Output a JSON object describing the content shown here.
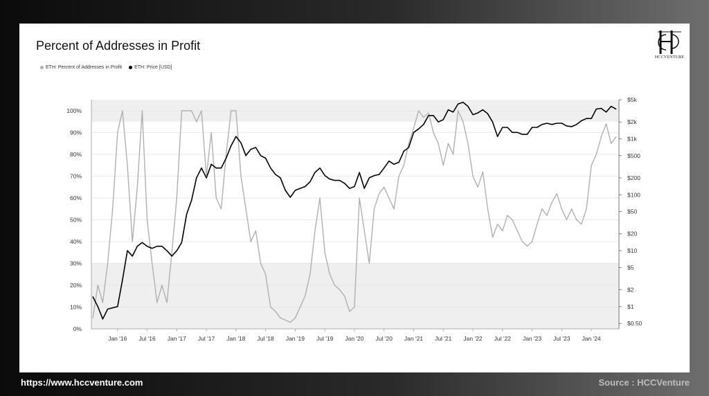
{
  "footer": {
    "url": "https://www.hccventure.com",
    "source": "Source : HCCVenture"
  },
  "logo": {
    "text": "HCCVENTURE"
  },
  "colors": {
    "percent_series": "#b0b0b0",
    "price_series": "#000000",
    "band": "#efefef"
  },
  "chart_data": {
    "type": "line",
    "title": "Percent of Addresses in Profit",
    "legend": [
      "ETH: Percent of Addresses in Profit",
      "ETH: Price [USD]"
    ],
    "legend_position": "top-left",
    "grid": true,
    "x_ticks": [
      "Jan '16",
      "Jul '16",
      "Jan '17",
      "Jul '17",
      "Jan '18",
      "Jul '18",
      "Jan '19",
      "Jul '19",
      "Jan '20",
      "Jul '20",
      "Jan '21",
      "Jul '21",
      "Jan '22",
      "Jul '22",
      "Jan '23",
      "Jul '23",
      "Jan '24"
    ],
    "y_left_ticks": [
      "0%",
      "10%",
      "20%",
      "30%",
      "40%",
      "50%",
      "60%",
      "70%",
      "80%",
      "90%",
      "100%"
    ],
    "y_left_range": [
      0,
      100
    ],
    "y_right_ticks": [
      "$0.50",
      "$1",
      "$2",
      "$5",
      "$10",
      "$20",
      "$50",
      "$100",
      "$200",
      "$500",
      "$1k",
      "$2k",
      "$5k"
    ],
    "y_right_scale": "log",
    "y_right_range": [
      0.4,
      5000
    ],
    "bands_percent": [
      [
        0,
        30
      ],
      [
        95,
        105
      ]
    ],
    "series": [
      {
        "name": "ETH: Percent of Addresses in Profit",
        "axis": "left",
        "x": [
          "2015-08",
          "2015-09",
          "2015-10",
          "2015-11",
          "2015-12",
          "2016-01",
          "2016-02",
          "2016-03",
          "2016-04",
          "2016-05",
          "2016-06",
          "2016-07",
          "2016-08",
          "2016-09",
          "2016-10",
          "2016-11",
          "2016-12",
          "2017-01",
          "2017-02",
          "2017-03",
          "2017-04",
          "2017-05",
          "2017-06",
          "2017-07",
          "2017-08",
          "2017-09",
          "2017-10",
          "2017-11",
          "2017-12",
          "2018-01",
          "2018-02",
          "2018-03",
          "2018-04",
          "2018-05",
          "2018-06",
          "2018-07",
          "2018-08",
          "2018-09",
          "2018-10",
          "2018-11",
          "2018-12",
          "2019-01",
          "2019-02",
          "2019-03",
          "2019-04",
          "2019-05",
          "2019-06",
          "2019-07",
          "2019-08",
          "2019-09",
          "2019-10",
          "2019-11",
          "2019-12",
          "2020-01",
          "2020-02",
          "2020-03",
          "2020-04",
          "2020-05",
          "2020-06",
          "2020-07",
          "2020-08",
          "2020-09",
          "2020-10",
          "2020-11",
          "2020-12",
          "2021-01",
          "2021-02",
          "2021-03",
          "2021-04",
          "2021-05",
          "2021-06",
          "2021-07",
          "2021-08",
          "2021-09",
          "2021-10",
          "2021-11",
          "2021-12",
          "2022-01",
          "2022-02",
          "2022-03",
          "2022-04",
          "2022-05",
          "2022-06",
          "2022-07",
          "2022-08",
          "2022-09",
          "2022-10",
          "2022-11",
          "2022-12",
          "2023-01",
          "2023-02",
          "2023-03",
          "2023-04",
          "2023-05",
          "2023-06",
          "2023-07",
          "2023-08",
          "2023-09",
          "2023-10",
          "2023-11",
          "2023-12",
          "2024-01",
          "2024-02",
          "2024-03",
          "2024-04",
          "2024-05",
          "2024-06"
        ],
        "values": [
          5,
          20,
          12,
          30,
          55,
          90,
          100,
          75,
          40,
          65,
          100,
          50,
          30,
          12,
          20,
          12,
          35,
          60,
          100,
          100,
          100,
          95,
          100,
          70,
          90,
          60,
          55,
          80,
          100,
          100,
          70,
          55,
          40,
          45,
          30,
          25,
          10,
          8,
          5,
          4,
          3,
          5,
          10,
          15,
          25,
          45,
          60,
          35,
          25,
          20,
          18,
          15,
          8,
          10,
          60,
          45,
          30,
          55,
          62,
          65,
          60,
          55,
          70,
          75,
          85,
          92,
          100,
          97,
          99,
          90,
          85,
          75,
          85,
          80,
          100,
          95,
          85,
          70,
          65,
          72,
          55,
          42,
          48,
          45,
          52,
          50,
          45,
          40,
          38,
          40,
          48,
          55,
          52,
          58,
          62,
          55,
          50,
          55,
          50,
          48,
          55,
          75,
          80,
          88,
          94,
          85,
          88
        ]
      },
      {
        "name": "ETH: Price [USD]",
        "axis": "right",
        "x": [
          "2015-08",
          "2015-09",
          "2015-10",
          "2015-11",
          "2015-12",
          "2016-01",
          "2016-02",
          "2016-03",
          "2016-04",
          "2016-05",
          "2016-06",
          "2016-07",
          "2016-08",
          "2016-09",
          "2016-10",
          "2016-11",
          "2016-12",
          "2017-01",
          "2017-02",
          "2017-03",
          "2017-04",
          "2017-05",
          "2017-06",
          "2017-07",
          "2017-08",
          "2017-09",
          "2017-10",
          "2017-11",
          "2017-12",
          "2018-01",
          "2018-02",
          "2018-03",
          "2018-04",
          "2018-05",
          "2018-06",
          "2018-07",
          "2018-08",
          "2018-09",
          "2018-10",
          "2018-11",
          "2018-12",
          "2019-01",
          "2019-02",
          "2019-03",
          "2019-04",
          "2019-05",
          "2019-06",
          "2019-07",
          "2019-08",
          "2019-09",
          "2019-10",
          "2019-11",
          "2019-12",
          "2020-01",
          "2020-02",
          "2020-03",
          "2020-04",
          "2020-05",
          "2020-06",
          "2020-07",
          "2020-08",
          "2020-09",
          "2020-10",
          "2020-11",
          "2020-12",
          "2021-01",
          "2021-02",
          "2021-03",
          "2021-04",
          "2021-05",
          "2021-06",
          "2021-07",
          "2021-08",
          "2021-09",
          "2021-10",
          "2021-11",
          "2021-12",
          "2022-01",
          "2022-02",
          "2022-03",
          "2022-04",
          "2022-05",
          "2022-06",
          "2022-07",
          "2022-08",
          "2022-09",
          "2022-10",
          "2022-11",
          "2022-12",
          "2023-01",
          "2023-02",
          "2023-03",
          "2023-04",
          "2023-05",
          "2023-06",
          "2023-07",
          "2023-08",
          "2023-09",
          "2023-10",
          "2023-11",
          "2023-12",
          "2024-01",
          "2024-02",
          "2024-03",
          "2024-04",
          "2024-05",
          "2024-06"
        ],
        "values": [
          1.5,
          1.0,
          0.6,
          0.9,
          0.95,
          1.0,
          3.0,
          10,
          8,
          12,
          14,
          12,
          11,
          12,
          12,
          10,
          8,
          10,
          14,
          45,
          80,
          200,
          300,
          200,
          350,
          300,
          300,
          450,
          750,
          1100,
          850,
          500,
          650,
          700,
          500,
          450,
          300,
          230,
          200,
          120,
          90,
          120,
          130,
          140,
          170,
          250,
          300,
          220,
          190,
          180,
          180,
          160,
          130,
          140,
          250,
          130,
          200,
          220,
          230,
          300,
          400,
          350,
          380,
          600,
          700,
          1300,
          1500,
          1800,
          2600,
          2600,
          2000,
          2200,
          3300,
          3000,
          4200,
          4500,
          3800,
          2700,
          2900,
          3300,
          2800,
          2000,
          1100,
          1600,
          1600,
          1300,
          1300,
          1200,
          1200,
          1600,
          1600,
          1800,
          1900,
          1800,
          1900,
          1900,
          1700,
          1650,
          1800,
          2100,
          2300,
          2300,
          3400,
          3500,
          3000,
          3800,
          3400
        ]
      }
    ]
  }
}
